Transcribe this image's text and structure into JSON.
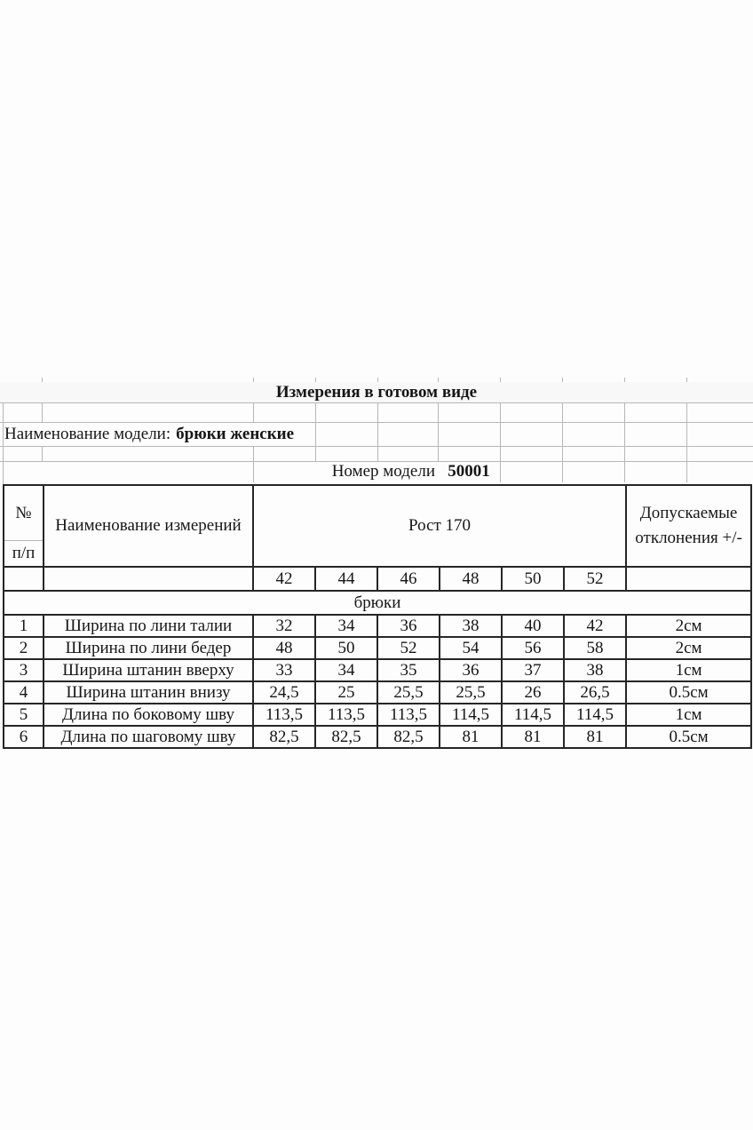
{
  "document": {
    "title": "Измерения в готовом виде",
    "model_label": "Наименование модели:",
    "model_value": "брюки женские",
    "number_label": "Номер модели",
    "number_value": "50001"
  },
  "table": {
    "header": {
      "num_top": "№",
      "num_bottom": "п/п",
      "name": "Наименование измерений",
      "height_group": "Рост 170",
      "tolerance": "Допускаемые отклонения +/-"
    },
    "sizes": [
      "42",
      "44",
      "46",
      "48",
      "50",
      "52"
    ],
    "category": "брюки",
    "rows": [
      {
        "num": "1",
        "name": "Ширина по лини талии",
        "values": [
          "32",
          "34",
          "36",
          "38",
          "40",
          "42"
        ],
        "tolerance": "2см"
      },
      {
        "num": "2",
        "name": "Ширина по лини бедер",
        "values": [
          "48",
          "50",
          "52",
          "54",
          "56",
          "58"
        ],
        "tolerance": "2см"
      },
      {
        "num": "3",
        "name": "Ширина штанин вверху",
        "values": [
          "33",
          "34",
          "35",
          "36",
          "37",
          "38"
        ],
        "tolerance": "1см"
      },
      {
        "num": "4",
        "name": "Ширина штанин внизу",
        "values": [
          "24,5",
          "25",
          "25,5",
          "25,5",
          "26",
          "26,5"
        ],
        "tolerance": "0.5см"
      },
      {
        "num": "5",
        "name": "Длина по боковому шву",
        "values": [
          "113,5",
          "113,5",
          "113,5",
          "114,5",
          "114,5",
          "114,5"
        ],
        "tolerance": "1см"
      },
      {
        "num": "6",
        "name": "Длина по шаговому шву",
        "values": [
          "82,5",
          "82,5",
          "82,5",
          "81",
          "81",
          "81"
        ],
        "tolerance": "0.5см"
      }
    ]
  },
  "colors": {
    "faint_grid": "#b7b7b7",
    "table_border": "#262626",
    "text": "#161616"
  }
}
